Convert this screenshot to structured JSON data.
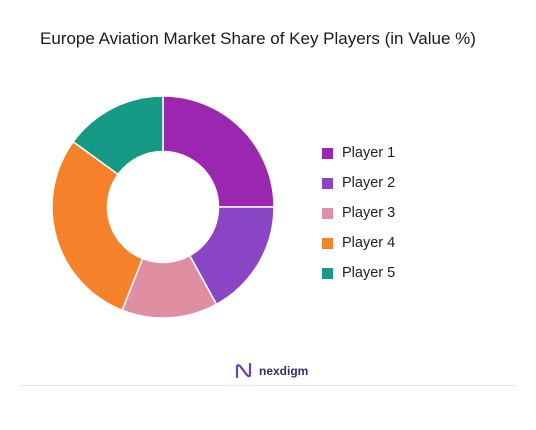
{
  "chart_data": {
    "type": "pie",
    "title": "Europe Aviation Market Share of Key Players (in Value %)",
    "categories": [
      "Player 1",
      "Player 2",
      "Player 3",
      "Player 4",
      "Player 5"
    ],
    "values": [
      25,
      17,
      14,
      29,
      15
    ],
    "colors": [
      "#9b27b0",
      "#8a45c4",
      "#e08ea2",
      "#f5822a",
      "#169a86"
    ],
    "legend": "right",
    "hole": 0.5
  },
  "branding": {
    "logo_text": "nexdigm",
    "logo_icon": "nexdigm-logo-icon"
  }
}
